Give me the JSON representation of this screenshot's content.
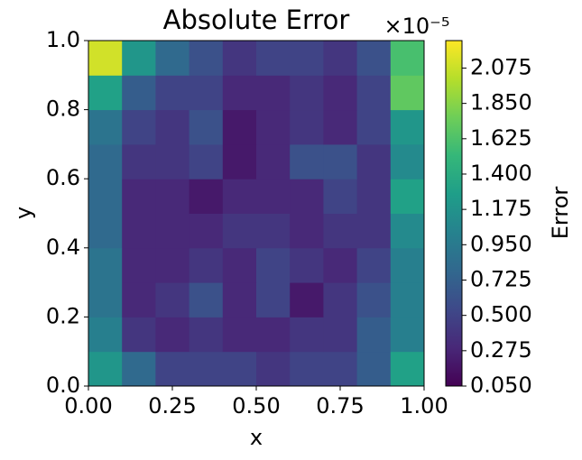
{
  "chart_data": {
    "type": "heatmap",
    "title": "Absolute Error",
    "x_label": "x",
    "y_label": "y",
    "colorbar_label": "Error",
    "colorbar_offset": "×10⁻⁵",
    "x": [
      0.05,
      0.15,
      0.25,
      0.35,
      0.45,
      0.55,
      0.65,
      0.75,
      0.85,
      0.95
    ],
    "y": [
      0.05,
      0.15,
      0.25,
      0.35,
      0.45,
      0.55,
      0.65,
      0.75,
      0.85,
      0.95
    ],
    "z": [
      [
        1.2,
        0.8,
        0.5,
        0.5,
        0.5,
        0.4,
        0.5,
        0.5,
        0.7,
        1.3
      ],
      [
        1.0,
        0.4,
        0.3,
        0.4,
        0.3,
        0.3,
        0.4,
        0.4,
        0.7,
        1.0
      ],
      [
        0.9,
        0.3,
        0.4,
        0.6,
        0.3,
        0.5,
        0.2,
        0.4,
        0.6,
        1.0
      ],
      [
        0.9,
        0.3,
        0.3,
        0.4,
        0.3,
        0.5,
        0.4,
        0.3,
        0.5,
        1.0
      ],
      [
        0.8,
        0.3,
        0.3,
        0.3,
        0.4,
        0.4,
        0.3,
        0.4,
        0.4,
        1.1
      ],
      [
        0.8,
        0.3,
        0.3,
        0.2,
        0.3,
        0.3,
        0.3,
        0.5,
        0.4,
        1.3
      ],
      [
        0.8,
        0.4,
        0.4,
        0.5,
        0.2,
        0.3,
        0.6,
        0.6,
        0.4,
        1.1
      ],
      [
        0.9,
        0.5,
        0.4,
        0.6,
        0.2,
        0.3,
        0.4,
        0.3,
        0.5,
        1.2
      ],
      [
        1.3,
        0.7,
        0.5,
        0.5,
        0.3,
        0.3,
        0.4,
        0.3,
        0.5,
        1.7
      ],
      [
        2.1,
        1.2,
        0.8,
        0.6,
        0.4,
        0.5,
        0.5,
        0.4,
        0.6,
        1.6
      ]
    ],
    "xlim": [
      0,
      1
    ],
    "ylim": [
      0,
      1
    ],
    "clim": [
      0.05,
      2.25
    ],
    "xticks": [
      {
        "value": 0,
        "label": "0.00"
      },
      {
        "value": 0.25,
        "label": "0.25"
      },
      {
        "value": 0.5,
        "label": "0.50"
      },
      {
        "value": 0.75,
        "label": "0.75"
      },
      {
        "value": 1,
        "label": "1.00"
      }
    ],
    "yticks": [
      {
        "value": 0,
        "label": "0.0"
      },
      {
        "value": 0.2,
        "label": "0.2"
      },
      {
        "value": 0.4,
        "label": "0.4"
      },
      {
        "value": 0.6,
        "label": "0.6"
      },
      {
        "value": 0.8,
        "label": "0.8"
      },
      {
        "value": 1,
        "label": "1.0"
      }
    ],
    "cticks": [
      {
        "value": 0.05,
        "label": "0.050"
      },
      {
        "value": 0.275,
        "label": "0.275"
      },
      {
        "value": 0.5,
        "label": "0.500"
      },
      {
        "value": 0.725,
        "label": "0.725"
      },
      {
        "value": 0.95,
        "label": "0.950"
      },
      {
        "value": 1.175,
        "label": "1.175"
      },
      {
        "value": 1.4,
        "label": "1.400"
      },
      {
        "value": 1.625,
        "label": "1.625"
      },
      {
        "value": 1.85,
        "label": "1.850"
      },
      {
        "value": 2.075,
        "label": "2.075"
      }
    ],
    "colormap": "viridis"
  }
}
